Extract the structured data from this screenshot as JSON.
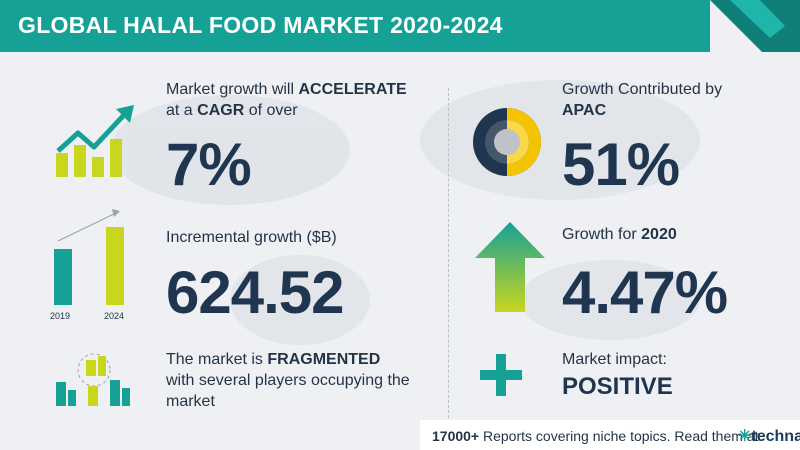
{
  "header": {
    "title": "GLOBAL HALAL FOOD MARKET 2020-2024"
  },
  "left": {
    "growth": {
      "line1_pre": "Market growth will ",
      "line1_bold": "ACCELERATE",
      "line2_pre": "at a ",
      "line2_bold": "CAGR",
      "line2_post": " of over",
      "value": "7%"
    },
    "incremental": {
      "label": "Incremental growth ($B)",
      "value": "624.52",
      "year_start": "2019",
      "year_end": "2024"
    },
    "fragmented": {
      "line1_pre": "The market is ",
      "line1_bold": "FRAGMENTED",
      "line2": "with several players occupying the",
      "line3": "market"
    }
  },
  "right": {
    "region": {
      "line1": "Growth Contributed by",
      "line2_bold": "APAC",
      "value": "51%"
    },
    "yoy": {
      "label_pre": "Growth for ",
      "label_bold": "2020",
      "value": "4.47%"
    },
    "impact": {
      "label": "Market impact:",
      "value": "POSITIVE"
    }
  },
  "footer": {
    "count": "17000+",
    "text": " Reports covering niche topics. Read them at",
    "logo_mark": "✳",
    "logo_text": "technavio"
  },
  "colors": {
    "teal": "#16a197",
    "yellow": "#c8d61e",
    "navy": "#1f3550"
  }
}
